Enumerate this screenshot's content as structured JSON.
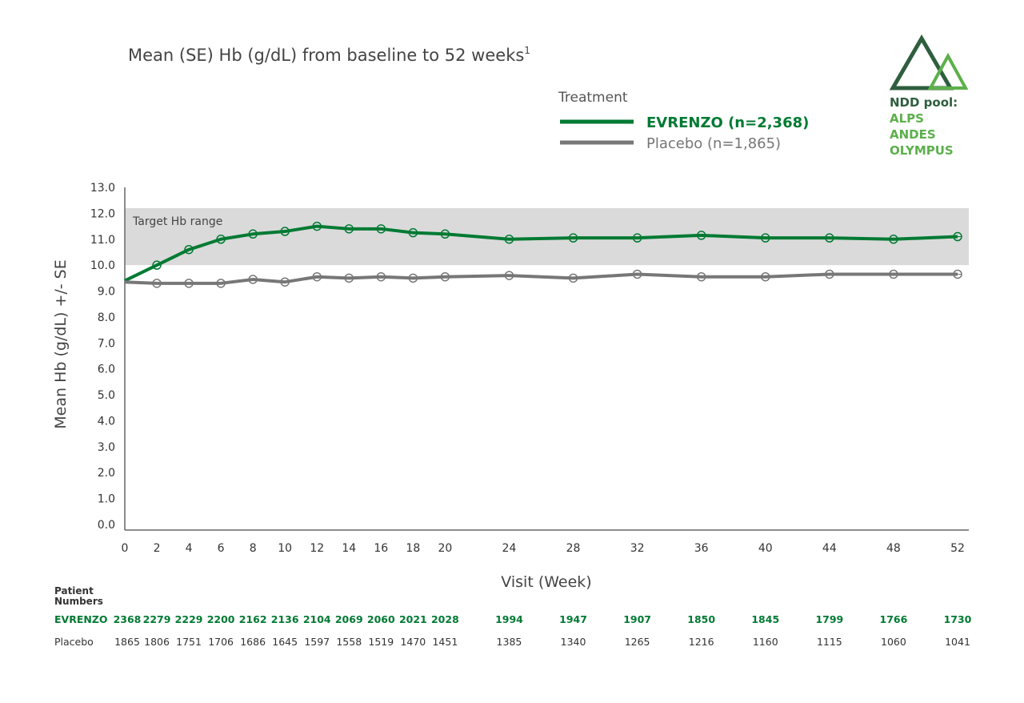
{
  "chart_data": {
    "type": "line",
    "title": "Mean (SE) Hb (g/dL) from baseline to 52 weeks",
    "title_superscript": "1",
    "xlabel": "Visit (Week)",
    "ylabel": "Mean Hb (g/dL) +/- SE",
    "xlim": [
      0,
      52
    ],
    "ylim": [
      0,
      13
    ],
    "x_ticks": [
      0,
      2,
      4,
      6,
      8,
      10,
      12,
      14,
      16,
      18,
      20,
      24,
      28,
      32,
      36,
      40,
      44,
      48,
      52
    ],
    "y_ticks": [
      "0.0",
      "1.0",
      "2.0",
      "3.0",
      "4.0",
      "5.0",
      "6.0",
      "7.0",
      "8.0",
      "9.0",
      "10.0",
      "11.0",
      "12.0",
      "13.0"
    ],
    "target_band": {
      "label": "Target Hb range",
      "from": 10.0,
      "to": 12.2
    },
    "legend_title": "Treatment",
    "legend_position": "top-right",
    "x": [
      0,
      2,
      4,
      6,
      8,
      10,
      12,
      14,
      16,
      18,
      20,
      24,
      28,
      32,
      36,
      40,
      44,
      48,
      52
    ],
    "series": [
      {
        "name": "EVRENZO (n=2,368)",
        "color": "#007a33",
        "values": [
          9.4,
          10.0,
          10.6,
          11.0,
          11.2,
          11.3,
          11.5,
          11.4,
          11.4,
          11.25,
          11.2,
          11.0,
          11.05,
          11.05,
          11.15,
          11.05,
          11.05,
          11.0,
          11.1
        ]
      },
      {
        "name": "Placebo (n=1,865)",
        "color": "#777777",
        "values": [
          9.35,
          9.3,
          9.3,
          9.3,
          9.45,
          9.35,
          9.55,
          9.5,
          9.55,
          9.5,
          9.55,
          9.6,
          9.5,
          9.65,
          9.55,
          9.55,
          9.65,
          9.65,
          9.65
        ]
      }
    ],
    "patient_numbers": {
      "header": "Patient Numbers",
      "rows": [
        {
          "label": "EVRENZO",
          "color": "#007a33",
          "values": [
            "2368",
            "2279",
            "2229",
            "2200",
            "2162",
            "2136",
            "2104",
            "2069",
            "2060",
            "2021",
            "2028",
            "1994",
            "1947",
            "1907",
            "1850",
            "1845",
            "1799",
            "1766",
            "1730"
          ]
        },
        {
          "label": "Placebo",
          "color": "#333333",
          "values": [
            "1865",
            "1806",
            "1751",
            "1706",
            "1686",
            "1645",
            "1597",
            "1558",
            "1519",
            "1470",
            "1451",
            "1385",
            "1340",
            "1265",
            "1216",
            "1160",
            "1115",
            "1060",
            "1041"
          ]
        }
      ]
    }
  },
  "logo": {
    "line1": "NDD pool:",
    "line2": "ALPS",
    "line3": "ANDES",
    "line4": "OLYMPUS",
    "dark": "#2e5e3e",
    "light": "#5cb04c"
  }
}
